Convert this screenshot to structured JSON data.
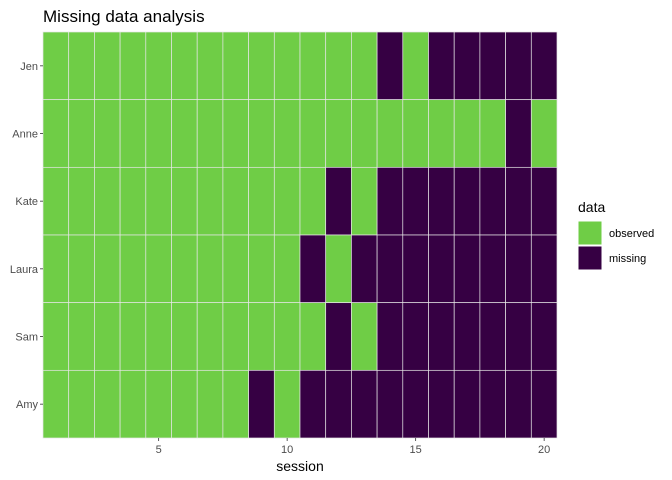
{
  "chart_data": {
    "type": "heatmap",
    "title": "Missing data analysis",
    "xlabel": "session",
    "ylabel": "",
    "x": [
      1,
      2,
      3,
      4,
      5,
      6,
      7,
      8,
      9,
      10,
      11,
      12,
      13,
      14,
      15,
      16,
      17,
      18,
      19,
      20
    ],
    "xlim": [
      0.5,
      20.5
    ],
    "xticks": [
      5,
      10,
      15,
      20
    ],
    "rows": [
      "Jen",
      "Anne",
      "Kate",
      "Laura",
      "Sam",
      "Amy"
    ],
    "legend": {
      "title": "data",
      "placement": "right",
      "entries": [
        {
          "label": "observed",
          "color": "#6fcd46"
        },
        {
          "label": "missing",
          "color": "#360043"
        }
      ]
    },
    "values": {
      "Jen": [
        "observed",
        "observed",
        "observed",
        "observed",
        "observed",
        "observed",
        "observed",
        "observed",
        "observed",
        "observed",
        "observed",
        "observed",
        "observed",
        "missing",
        "observed",
        "missing",
        "missing",
        "missing",
        "missing",
        "missing"
      ],
      "Anne": [
        "observed",
        "observed",
        "observed",
        "observed",
        "observed",
        "observed",
        "observed",
        "observed",
        "observed",
        "observed",
        "observed",
        "observed",
        "observed",
        "observed",
        "observed",
        "observed",
        "observed",
        "observed",
        "missing",
        "observed"
      ],
      "Kate": [
        "observed",
        "observed",
        "observed",
        "observed",
        "observed",
        "observed",
        "observed",
        "observed",
        "observed",
        "observed",
        "observed",
        "missing",
        "observed",
        "missing",
        "missing",
        "missing",
        "missing",
        "missing",
        "missing",
        "missing"
      ],
      "Laura": [
        "observed",
        "observed",
        "observed",
        "observed",
        "observed",
        "observed",
        "observed",
        "observed",
        "observed",
        "observed",
        "missing",
        "observed",
        "missing",
        "missing",
        "missing",
        "missing",
        "missing",
        "missing",
        "missing",
        "missing"
      ],
      "Sam": [
        "observed",
        "observed",
        "observed",
        "observed",
        "observed",
        "observed",
        "observed",
        "observed",
        "observed",
        "observed",
        "observed",
        "missing",
        "observed",
        "missing",
        "missing",
        "missing",
        "missing",
        "missing",
        "missing",
        "missing"
      ],
      "Amy": [
        "observed",
        "observed",
        "observed",
        "observed",
        "observed",
        "observed",
        "observed",
        "observed",
        "missing",
        "observed",
        "missing",
        "missing",
        "missing",
        "missing",
        "missing",
        "missing",
        "missing",
        "missing",
        "missing",
        "missing"
      ]
    },
    "grid": false
  }
}
